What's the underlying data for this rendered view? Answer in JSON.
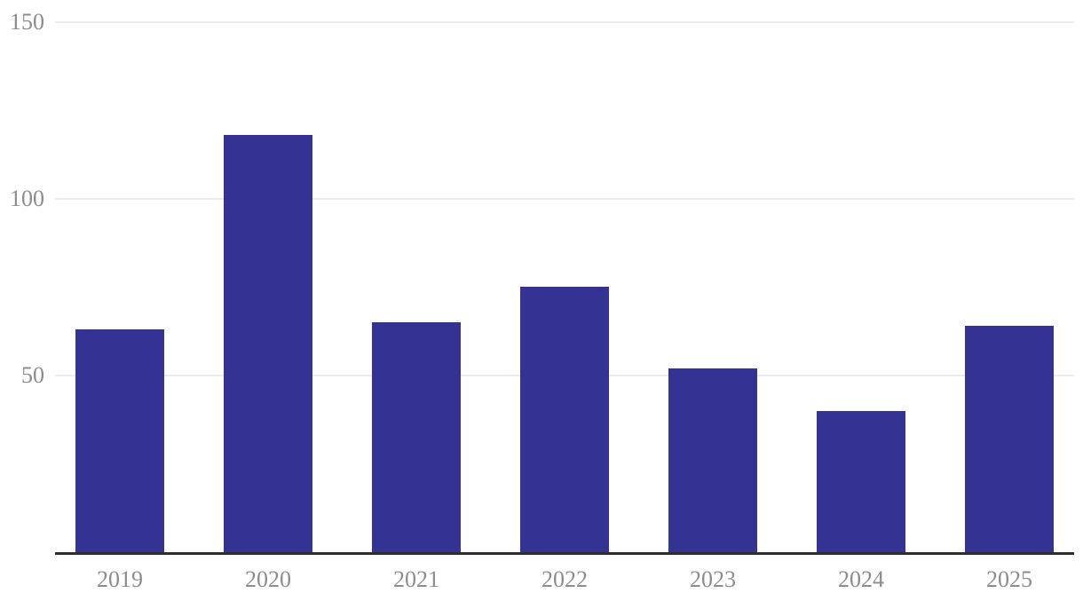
{
  "chart_data": {
    "type": "bar",
    "title": "",
    "xlabel": "",
    "ylabel": "",
    "categories": [
      "2019",
      "2020",
      "2021",
      "2022",
      "2023",
      "2024",
      "2025"
    ],
    "values": [
      63,
      118,
      65,
      75,
      52,
      40,
      64
    ],
    "ylim": [
      0,
      150
    ],
    "yticks": [
      50,
      100,
      150
    ],
    "grid": true,
    "legend": false,
    "colors": {
      "bar": "#343293",
      "gridline": "#ebebeb",
      "axis_line": "#2e2e2e",
      "tick_label": "#8c8c8c",
      "background": "#ffffff"
    }
  }
}
